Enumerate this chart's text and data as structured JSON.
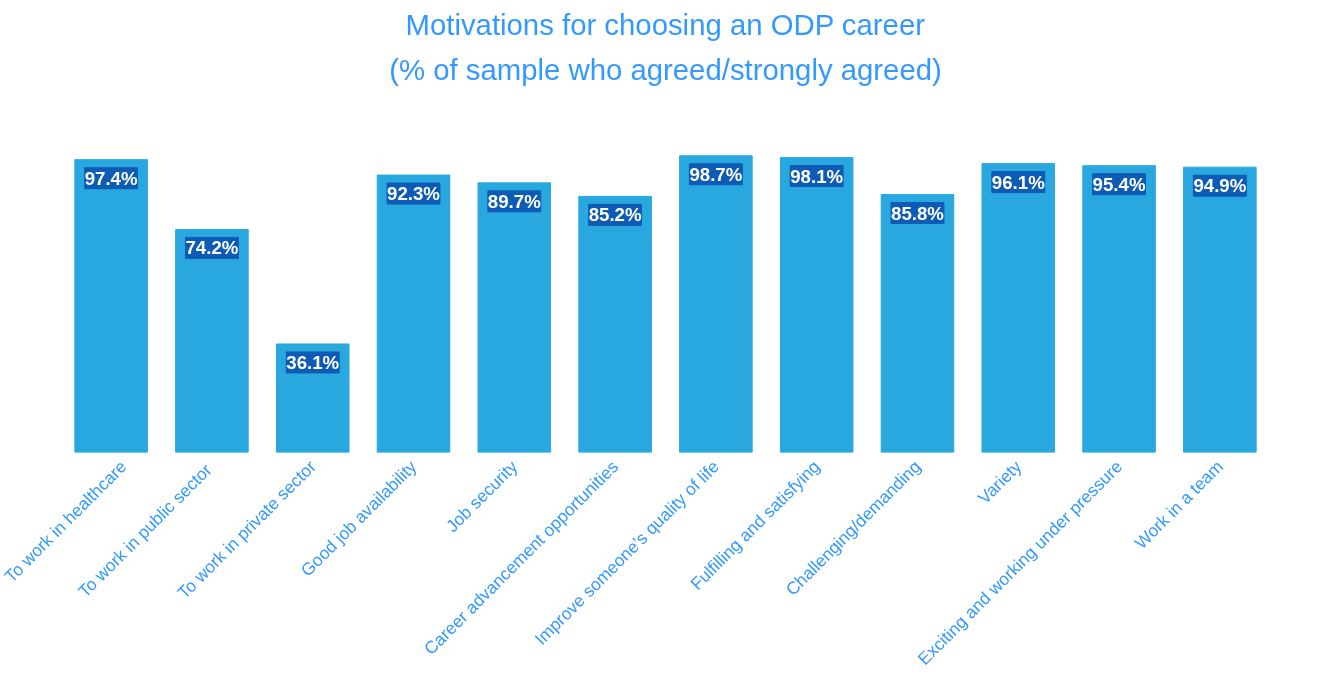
{
  "chart_data": {
    "type": "bar",
    "title": "Motivations for choosing an ODP career",
    "subtitle": "(% of sample who agreed/strongly agreed)",
    "categories": [
      "To work in healthcare",
      "To work in  public sector",
      "To work in private sector",
      "Good job availability",
      "Job security",
      "Career advancement opportunities",
      "Improve someone’s quality of life",
      "Fulfilling and satisfying",
      "Challenging/demanding",
      "Variety",
      "Exciting and working under pressure",
      "Work in a team"
    ],
    "values": [
      97.4,
      74.2,
      36.1,
      92.3,
      89.7,
      85.2,
      98.7,
      98.1,
      85.8,
      96.1,
      95.4,
      94.9
    ],
    "value_labels": [
      "97.4%",
      "74.2%",
      "36.1%",
      "92.3%",
      "89.7%",
      "85.2%",
      "98.7%",
      "98.1%",
      "85.8%",
      "96.1%",
      "95.4%",
      "94.9%"
    ],
    "color": "#29a8e0"
  }
}
